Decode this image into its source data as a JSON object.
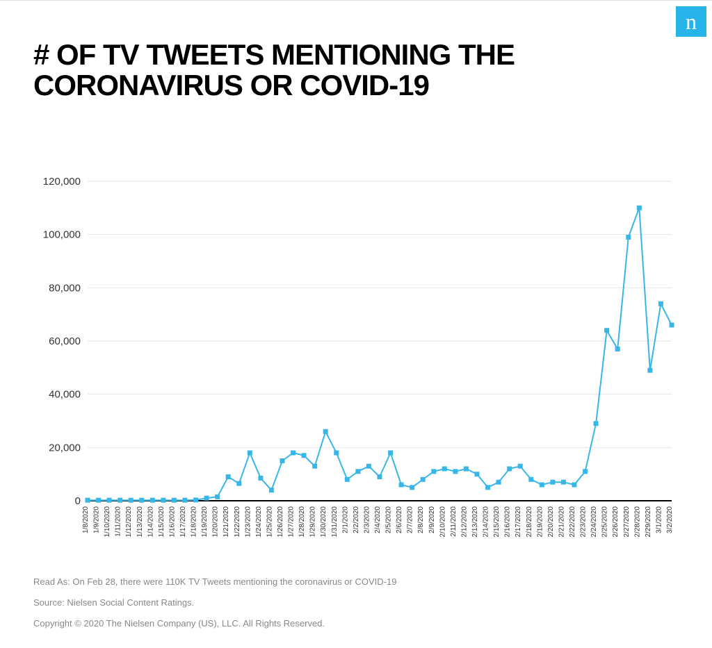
{
  "logo_glyph": "n",
  "title": "# OF TV TWEETS MENTIONING THE CORONAVIRUS OR COVID-19",
  "title_fontsize": 42,
  "chart": {
    "type": "line",
    "series_color": "#39b6e8",
    "marker_shape": "square",
    "marker_size": 7,
    "line_width": 2,
    "background_color": "#ffffff",
    "grid_color": "#e6e6e6",
    "axis_color": "#000000",
    "ylim": [
      0,
      120000
    ],
    "yticks": [
      0,
      20000,
      40000,
      60000,
      80000,
      100000,
      120000
    ],
    "ytick_labels": [
      "0",
      "20,000",
      "40,000",
      "60,000",
      "80,000",
      "100,000",
      "120,000"
    ],
    "ytick_fontsize": 15,
    "xtick_fontsize": 10,
    "x_labels": [
      "1/8/2020",
      "1/9/2020",
      "1/10/2020",
      "1/11/2020",
      "1/12/2020",
      "1/13/2020",
      "1/14/2020",
      "1/15/2020",
      "1/16/2020",
      "1/17/2020",
      "1/18/2020",
      "1/19/2020",
      "1/20/2020",
      "1/21/2020",
      "1/22/2020",
      "1/23/2020",
      "1/24/2020",
      "1/25/2020",
      "1/26/2020",
      "1/27/2020",
      "1/28/2020",
      "1/29/2020",
      "1/30/2020",
      "1/31/2020",
      "2/1/2020",
      "2/2/2020",
      "2/3/2020",
      "2/4/2020",
      "2/5/2020",
      "2/6/2020",
      "2/7/2020",
      "2/8/2020",
      "2/9/2020",
      "2/10/2020",
      "2/11/2020",
      "2/12/2020",
      "2/13/2020",
      "2/14/2020",
      "2/15/2020",
      "2/16/2020",
      "2/17/2020",
      "2/18/2020",
      "2/19/2020",
      "2/20/2020",
      "2/21/2020",
      "2/22/2020",
      "2/23/2020",
      "2/24/2020",
      "2/25/2020",
      "2/26/2020",
      "2/27/2020",
      "2/28/2020",
      "2/29/2020",
      "3/1/2020",
      "3/2/2020"
    ],
    "values": [
      200,
      200,
      200,
      200,
      200,
      200,
      200,
      200,
      200,
      200,
      300,
      1000,
      1500,
      9000,
      6500,
      18000,
      8500,
      4000,
      15000,
      18000,
      17000,
      13000,
      26000,
      18000,
      8000,
      11000,
      13000,
      9000,
      18000,
      6000,
      5000,
      8000,
      11000,
      12000,
      11000,
      12000,
      10000,
      5000,
      7000,
      12000,
      13000,
      8000,
      6000,
      7000,
      7000,
      6000,
      11000,
      29000,
      64000,
      57000,
      99000,
      110000,
      49000,
      74000,
      66000
    ]
  },
  "footer": {
    "read_as": "Read As: On Feb 28, there were 110K TV Tweets mentioning the coronavirus or COVID-19",
    "source": "Source: Nielsen Social Content Ratings.",
    "copyright": "Copyright © 2020 The Nielsen Company (US), LLC. All Rights Reserved."
  }
}
